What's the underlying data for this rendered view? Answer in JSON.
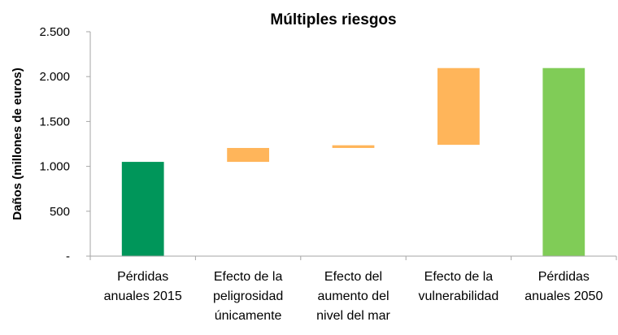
{
  "chart_data": {
    "type": "bar",
    "subtype": "waterfall",
    "title": "Múltiples riesgos",
    "ylabel": "Daños (millones de euros)",
    "xlabel": "",
    "ylim": [
      0,
      2500
    ],
    "yticks": [
      {
        "value": 0,
        "label": "-"
      },
      {
        "value": 500,
        "label": "500"
      },
      {
        "value": 1000,
        "label": "1.000"
      },
      {
        "value": 1500,
        "label": "1.500"
      },
      {
        "value": 2000,
        "label": "2.000"
      },
      {
        "value": 2500,
        "label": "2.500"
      }
    ],
    "grid": false,
    "legend": "none",
    "categories": [
      {
        "lines": [
          "Pérdidas",
          "anuales 2015"
        ]
      },
      {
        "lines": [
          "Efecto de la",
          "peligrosidad",
          "únicamente"
        ]
      },
      {
        "lines": [
          "Efecto del",
          "aumento del",
          "nivel del mar"
        ]
      },
      {
        "lines": [
          "Efecto de la",
          "vulnerabilidad"
        ]
      },
      {
        "lines": [
          "Pérdidas",
          "anuales 2050"
        ]
      }
    ],
    "bars": [
      {
        "base": 0,
        "top": 1050,
        "color": "#00965a"
      },
      {
        "base": 1050,
        "top": 1205,
        "color": "#ffb55a"
      },
      {
        "base": 1205,
        "top": 1235,
        "color": "#ffb55a"
      },
      {
        "base": 1240,
        "top": 2095,
        "color": "#ffb55a"
      },
      {
        "base": 0,
        "top": 2095,
        "color": "#80cc57"
      }
    ],
    "colors": {
      "axis": "#a6a6a6",
      "text": "#000000"
    }
  }
}
